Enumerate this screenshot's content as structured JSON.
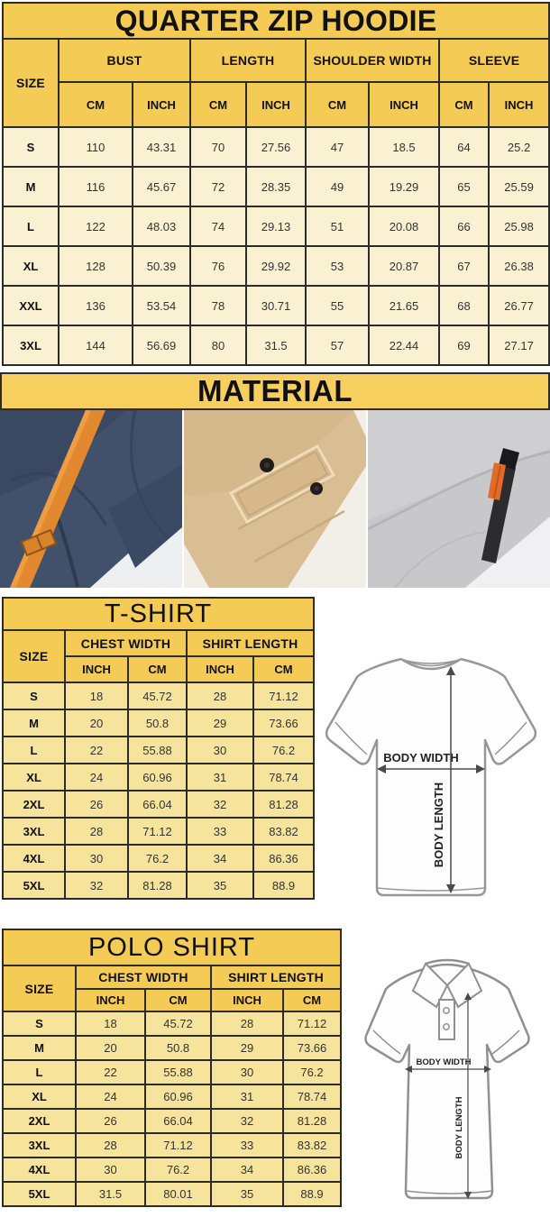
{
  "hoodie": {
    "title": "QUARTER ZIP HOODIE",
    "size_header": "SIZE",
    "groups": [
      "BUST",
      "LENGTH",
      "SHOULDER WIDTH",
      "SLEEVE"
    ],
    "units": [
      "CM",
      "INCH",
      "CM",
      "INCH",
      "CM",
      "INCH",
      "CM",
      "INCH"
    ],
    "rows": [
      {
        "size": "S",
        "values": [
          "110",
          "43.31",
          "70",
          "27.56",
          "47",
          "18.5",
          "64",
          "25.2"
        ]
      },
      {
        "size": "M",
        "values": [
          "116",
          "45.67",
          "72",
          "28.35",
          "49",
          "19.29",
          "65",
          "25.59"
        ]
      },
      {
        "size": "L",
        "values": [
          "122",
          "48.03",
          "74",
          "29.13",
          "51",
          "20.08",
          "66",
          "25.98"
        ]
      },
      {
        "size": "XL",
        "values": [
          "128",
          "50.39",
          "76",
          "29.92",
          "53",
          "20.87",
          "67",
          "26.38"
        ]
      },
      {
        "size": "XXL",
        "values": [
          "136",
          "53.54",
          "78",
          "30.71",
          "55",
          "21.65",
          "68",
          "26.77"
        ]
      },
      {
        "size": "3XL",
        "values": [
          "144",
          "56.69",
          "80",
          "31.5",
          "57",
          "22.44",
          "69",
          "27.17"
        ]
      }
    ]
  },
  "material": {
    "title": "MATERIAL",
    "photos": [
      "navy-fleece-orange-strap",
      "khaki-snap-flap-pocket",
      "gray-fleece-zipper-pocket"
    ]
  },
  "tshirt": {
    "title": "T-SHIRT",
    "size_header": "SIZE",
    "groups": [
      "CHEST WIDTH",
      "SHIRT LENGTH"
    ],
    "units": [
      "INCH",
      "CM",
      "INCH",
      "CM"
    ],
    "rows": [
      {
        "size": "S",
        "values": [
          "18",
          "45.72",
          "28",
          "71.12"
        ]
      },
      {
        "size": "M",
        "values": [
          "20",
          "50.8",
          "29",
          "73.66"
        ]
      },
      {
        "size": "L",
        "values": [
          "22",
          "55.88",
          "30",
          "76.2"
        ]
      },
      {
        "size": "XL",
        "values": [
          "24",
          "60.96",
          "31",
          "78.74"
        ]
      },
      {
        "size": "2XL",
        "values": [
          "26",
          "66.04",
          "32",
          "81.28"
        ]
      },
      {
        "size": "3XL",
        "values": [
          "28",
          "71.12",
          "33",
          "83.82"
        ]
      },
      {
        "size": "4XL",
        "values": [
          "30",
          "76.2",
          "34",
          "86.36"
        ]
      },
      {
        "size": "5XL",
        "values": [
          "32",
          "81.28",
          "35",
          "88.9"
        ]
      }
    ]
  },
  "polo": {
    "title": "POLO SHIRT",
    "size_header": "SIZE",
    "groups": [
      "CHEST WIDTH",
      "SHIRT LENGTH"
    ],
    "units": [
      "INCH",
      "CM",
      "INCH",
      "CM"
    ],
    "rows": [
      {
        "size": "S",
        "values": [
          "18",
          "45.72",
          "28",
          "71.12"
        ]
      },
      {
        "size": "M",
        "values": [
          "20",
          "50.8",
          "29",
          "73.66"
        ]
      },
      {
        "size": "L",
        "values": [
          "22",
          "55.88",
          "30",
          "76.2"
        ]
      },
      {
        "size": "XL",
        "values": [
          "24",
          "60.96",
          "31",
          "78.74"
        ]
      },
      {
        "size": "2XL",
        "values": [
          "26",
          "66.04",
          "32",
          "81.28"
        ]
      },
      {
        "size": "3XL",
        "values": [
          "28",
          "71.12",
          "33",
          "83.82"
        ]
      },
      {
        "size": "4XL",
        "values": [
          "30",
          "76.2",
          "34",
          "86.36"
        ]
      },
      {
        "size": "5XL",
        "values": [
          "31.5",
          "80.01",
          "35",
          "88.9"
        ]
      }
    ]
  },
  "diagram": {
    "body_width": "BODY WIDTH",
    "body_length": "BODY LENGTH"
  },
  "colors": {
    "header_gold": "#f4cb55",
    "hoodie_row_cream": "#f9f1d2",
    "shirt_row_yellow": "#f6e49c",
    "table_border": "#2b2b2b",
    "accent_orange": "#e0822e"
  }
}
